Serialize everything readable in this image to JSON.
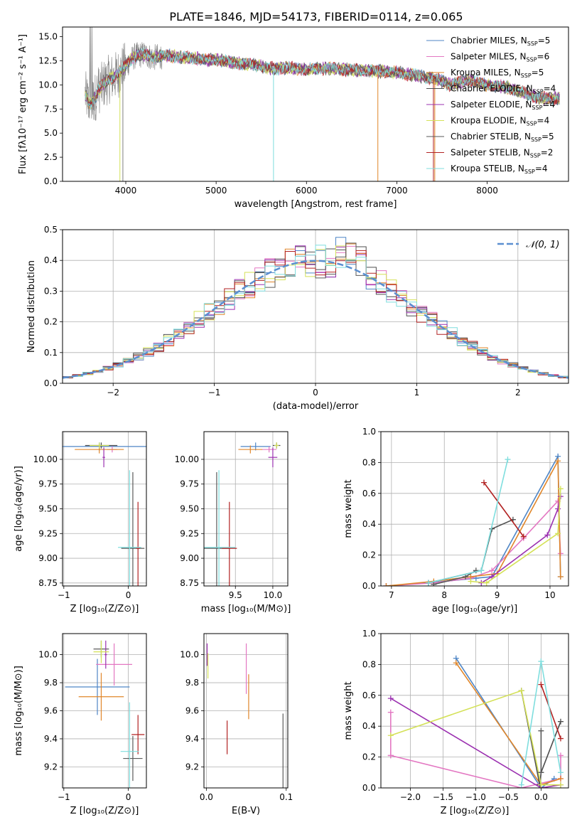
{
  "figure_title": "PLATE=1846, MJD=54173, FIBERID=0114, z=0.065",
  "colors": [
    "#4f86c6",
    "#e377c2",
    "#e0862a",
    "#4d4d4d",
    "#9b30b0",
    "#d4e157",
    "#5a5a5a",
    "#b22222",
    "#7fdede"
  ],
  "chart_data": [
    {
      "id": "spectrum",
      "type": "line",
      "xlabel": "wavelength [Angstrom, rest frame]",
      "ylabel": "Flux [fλ10⁻¹⁷ erg cm⁻² s⁻¹ A⁻¹]",
      "xlim": [
        3300,
        8900
      ],
      "ylim": [
        0,
        16
      ],
      "xticks": [
        "4000",
        "5000",
        "6000",
        "7000",
        "8000"
      ],
      "yticks": [
        "0.0",
        "2.5",
        "5.0",
        "7.5",
        "10.0",
        "12.5",
        "15.0"
      ],
      "legend": [
        {
          "name": "Chabrier MILES, N",
          "sub": "SSP",
          "tail": "=5",
          "color": "#4f86c6"
        },
        {
          "name": "Salpeter MILES, N",
          "sub": "SSP",
          "tail": "=6",
          "color": "#e377c2"
        },
        {
          "name": "Kroupa MILES, N",
          "sub": "SSP",
          "tail": "=5",
          "color": "#e0862a"
        },
        {
          "name": "Chabrier ELODIE, N",
          "sub": "SSP",
          "tail": "=4",
          "color": "#4d4d4d"
        },
        {
          "name": "Salpeter ELODIE, N",
          "sub": "SSP",
          "tail": "=4",
          "color": "#9b30b0"
        },
        {
          "name": "Kroupa ELODIE, N",
          "sub": "SSP",
          "tail": "=4",
          "color": "#d4e157"
        },
        {
          "name": "Chabrier STELIB, N",
          "sub": "SSP",
          "tail": "=5",
          "color": "#5a5a5a"
        },
        {
          "name": "Salpeter STELIB, N",
          "sub": "SSP",
          "tail": "=2",
          "color": "#b22222"
        },
        {
          "name": "Kroupa STELIB, N",
          "sub": "SSP",
          "tail": "=4",
          "color": "#7fdede"
        }
      ],
      "continuum": [
        [
          3550,
          9
        ],
        [
          3600,
          8
        ],
        [
          3650,
          8.5
        ],
        [
          3700,
          9.5
        ],
        [
          3800,
          10.5
        ],
        [
          3900,
          11
        ],
        [
          4000,
          12
        ],
        [
          4100,
          13
        ],
        [
          4200,
          13.2
        ],
        [
          4300,
          12.8
        ],
        [
          4400,
          13
        ],
        [
          4500,
          13
        ],
        [
          4700,
          12.8
        ],
        [
          4900,
          12.6
        ],
        [
          5000,
          12.6
        ],
        [
          5200,
          12.3
        ],
        [
          5400,
          12.1
        ],
        [
          5600,
          11.7
        ],
        [
          5800,
          11.8
        ],
        [
          6000,
          11.6
        ],
        [
          6200,
          11.7
        ],
        [
          6400,
          11.6
        ],
        [
          6600,
          11.5
        ],
        [
          6800,
          11.4
        ],
        [
          7000,
          11.3
        ],
        [
          7200,
          11
        ],
        [
          7400,
          10.7
        ],
        [
          7600,
          10
        ],
        [
          7800,
          10.5
        ],
        [
          8000,
          10
        ],
        [
          8200,
          9.8
        ],
        [
          8400,
          9.2
        ],
        [
          8600,
          8.6
        ],
        [
          8800,
          8.6
        ]
      ]
    },
    {
      "id": "residuals",
      "type": "histogram",
      "xlabel": "(data-model)/error",
      "ylabel": "Normed distribution",
      "xlim": [
        -2.5,
        2.5
      ],
      "ylim": [
        0,
        0.5
      ],
      "xticks": [
        "−2",
        "−1",
        "0",
        "1",
        "2"
      ],
      "yticks": [
        "0.0",
        "0.1",
        "0.2",
        "0.3",
        "0.4",
        "0.5"
      ],
      "legend_label": "𝒩(0, 1)",
      "bin_width": 0.1
    },
    {
      "id": "age_vs_Z",
      "type": "scatter",
      "xlabel": "Z [log₁₀(Z/Z⊙)]",
      "ylabel": "age  [log₁₀(age/yr)]",
      "xlim": [
        -1.02,
        0.28
      ],
      "ylim": [
        8.72,
        10.28
      ],
      "xticks": [
        "−1",
        "0"
      ],
      "yticks": [
        "8.75",
        "9.00",
        "9.25",
        "9.50",
        "9.75",
        "10.00"
      ],
      "points": [
        {
          "x": -0.45,
          "y": 10.13,
          "xerr": 0.95,
          "yerr": 0.04,
          "c": 0
        },
        {
          "x": -0.25,
          "y": 10.1,
          "xerr": 0.08,
          "yerr": 0.03,
          "c": 1
        },
        {
          "x": -0.45,
          "y": 10.1,
          "xerr": 0.38,
          "yerr": 0.04,
          "c": 2
        },
        {
          "x": -0.42,
          "y": 10.14,
          "xerr": 0.25,
          "yerr": 0.03,
          "c": 3
        },
        {
          "x": -0.38,
          "y": 10.02,
          "xerr": 0.02,
          "yerr": 0.1,
          "c": 4
        },
        {
          "x": -0.45,
          "y": 10.14,
          "xerr": 0.15,
          "yerr": 0.03,
          "c": 5
        },
        {
          "x": 0.07,
          "y": 9.1,
          "xerr": 0.18,
          "yerr": 0.77,
          "c": 6
        },
        {
          "x": 0.15,
          "y": 9.1,
          "xerr": 0.03,
          "yerr": 0.47,
          "c": 7
        },
        {
          "x": 0.02,
          "y": 9.11,
          "xerr": 0.18,
          "yerr": 0.78,
          "c": 8
        }
      ]
    },
    {
      "id": "age_vs_mass",
      "type": "scatter",
      "xlabel": "mass [log₁₀(M/M⊙)]",
      "ylabel": "",
      "xlim": [
        9.08,
        10.2
      ],
      "ylim": [
        8.72,
        10.28
      ],
      "xticks": [
        "9.5",
        "10.0"
      ],
      "yticks": [
        "8.75",
        "9.00",
        "9.25",
        "9.50",
        "9.75",
        "10.00"
      ],
      "points": [
        {
          "x": 9.77,
          "y": 10.13,
          "xerr": 0.2,
          "yerr": 0.04,
          "c": 0
        },
        {
          "x": 9.95,
          "y": 10.1,
          "xerr": 0.1,
          "yerr": 0.03,
          "c": 1
        },
        {
          "x": 9.7,
          "y": 10.1,
          "xerr": 0.16,
          "yerr": 0.04,
          "c": 2
        },
        {
          "x": 10.05,
          "y": 10.14,
          "xerr": 0.05,
          "yerr": 0.03,
          "c": 3
        },
        {
          "x": 10.0,
          "y": 10.02,
          "xerr": 0.06,
          "yerr": 0.1,
          "c": 4
        },
        {
          "x": 10.05,
          "y": 10.14,
          "xerr": 0.03,
          "yerr": 0.03,
          "c": 5
        },
        {
          "x": 9.25,
          "y": 9.1,
          "xerr": 0.18,
          "yerr": 0.77,
          "c": 6
        },
        {
          "x": 9.42,
          "y": 9.1,
          "xerr": 0.1,
          "yerr": 0.47,
          "c": 7
        },
        {
          "x": 9.28,
          "y": 9.11,
          "xerr": 0.22,
          "yerr": 0.78,
          "c": 8
        }
      ]
    },
    {
      "id": "weight_vs_age",
      "type": "line",
      "xlabel": "age  [log₁₀(age/yr)]",
      "ylabel": "mass weight",
      "xlim": [
        6.8,
        10.35
      ],
      "ylim": [
        0,
        1.0
      ],
      "xticks": [
        "7",
        "8",
        "9",
        "10"
      ],
      "yticks": [
        "0.0",
        "0.2",
        "0.4",
        "0.6",
        "0.8",
        "1.0"
      ],
      "series": [
        {
          "c": 0,
          "x": [
            6.9,
            7.7,
            8.6,
            8.9,
            10.15,
            10.2
          ],
          "y": [
            0.0,
            0.02,
            0.05,
            0.06,
            0.84,
            0.06
          ]
        },
        {
          "c": 1,
          "x": [
            6.9,
            7.8,
            8.5,
            8.9,
            9.5,
            10.15,
            10.2
          ],
          "y": [
            0.0,
            0.02,
            0.05,
            0.1,
            0.31,
            0.55,
            0.21
          ]
        },
        {
          "c": 2,
          "x": [
            6.9,
            7.8,
            8.5,
            9.0,
            10.15,
            10.2
          ],
          "y": [
            0.0,
            0.03,
            0.06,
            0.08,
            0.81,
            0.06
          ]
        },
        {
          "c": 3,
          "x": [
            7.7,
            8.7,
            8.9,
            9.3
          ],
          "y": [
            0.02,
            0.1,
            0.37,
            0.43
          ]
        },
        {
          "c": 4,
          "x": [
            8.7,
            8.9,
            9.95,
            10.15,
            10.2
          ],
          "y": [
            0.02,
            0.06,
            0.33,
            0.5,
            0.58
          ]
        },
        {
          "c": 5,
          "x": [
            8.5,
            8.8,
            10.15,
            10.2
          ],
          "y": [
            0.03,
            0.02,
            0.34,
            0.63
          ]
        },
        {
          "c": 6,
          "x": [
            7.8,
            8.4,
            8.6
          ],
          "y": [
            0.01,
            0.06,
            0.1
          ]
        },
        {
          "c": 7,
          "x": [
            8.75,
            9.5
          ],
          "y": [
            0.67,
            0.32
          ]
        },
        {
          "c": 8,
          "x": [
            7.7,
            8.7,
            9.2
          ],
          "y": [
            0.02,
            0.1,
            0.82
          ]
        }
      ]
    },
    {
      "id": "mass_vs_Z",
      "type": "scatter",
      "xlabel": "Z [log₁₀(Z/Z⊙)]",
      "ylabel": "mass [log₁₀(M/M⊙)]",
      "xlim": [
        -1.02,
        0.28
      ],
      "ylim": [
        9.05,
        10.15
      ],
      "xticks": [
        "−1",
        "0"
      ],
      "yticks": [
        "9.2",
        "9.4",
        "9.6",
        "9.8",
        "10.0"
      ],
      "points": [
        {
          "x": -0.48,
          "y": 9.77,
          "xerr": 0.5,
          "yerr": 0.2,
          "c": 0
        },
        {
          "x": -0.22,
          "y": 9.93,
          "xerr": 0.28,
          "yerr": 0.15,
          "c": 1
        },
        {
          "x": -0.42,
          "y": 9.7,
          "xerr": 0.35,
          "yerr": 0.17,
          "c": 2
        },
        {
          "x": -0.42,
          "y": 10.04,
          "xerr": 0.12,
          "yerr": 0.06,
          "c": 3
        },
        {
          "x": -0.35,
          "y": 10.0,
          "xerr": 0.02,
          "yerr": 0.1,
          "c": 4
        },
        {
          "x": -0.42,
          "y": 10.02,
          "xerr": 0.12,
          "yerr": 0.08,
          "c": 5
        },
        {
          "x": 0.07,
          "y": 9.26,
          "xerr": 0.15,
          "yerr": 0.16,
          "c": 6
        },
        {
          "x": 0.15,
          "y": 9.43,
          "xerr": 0.1,
          "yerr": 0.14,
          "c": 7
        },
        {
          "x": 0.02,
          "y": 9.31,
          "xerr": 0.14,
          "yerr": 0.35,
          "c": 8
        }
      ]
    },
    {
      "id": "mass_vs_ebv",
      "type": "scatter",
      "xlabel": "E(B-V)",
      "ylabel": "",
      "xlim": [
        -0.003,
        0.102
      ],
      "ylim": [
        9.05,
        10.15
      ],
      "xticks": [
        "0.0",
        "0.1"
      ],
      "yticks": [
        "9.2",
        "9.4",
        "9.6",
        "9.8",
        "10.0"
      ],
      "points": [
        {
          "x": 0.001,
          "y": 10.0,
          "xerr": 0,
          "yerr": 0.08,
          "c": 4
        },
        {
          "x": 0.002,
          "y": 9.92,
          "xerr": 0,
          "yerr": 0.09,
          "c": 5
        },
        {
          "x": 0.05,
          "y": 9.9,
          "xerr": 0,
          "yerr": 0.18,
          "c": 1
        },
        {
          "x": 0.053,
          "y": 9.7,
          "xerr": 0,
          "yerr": 0.16,
          "c": 2
        },
        {
          "x": 0.026,
          "y": 9.41,
          "xerr": 0,
          "yerr": 0.12,
          "c": 7
        },
        {
          "x": 0.096,
          "y": 9.26,
          "xerr": 0,
          "yerr": 0.32,
          "c": 6
        }
      ]
    },
    {
      "id": "weight_vs_Z",
      "type": "line",
      "xlabel": "Z [log₁₀(Z/Z⊙)]",
      "ylabel": "mass weight",
      "xlim": [
        -2.45,
        0.42
      ],
      "ylim": [
        0,
        1.0
      ],
      "xticks": [
        "−2.0",
        "−1.5",
        "−1.0",
        "−0.5",
        "0.0"
      ],
      "yticks": [
        "0.0",
        "0.2",
        "0.4",
        "0.6",
        "0.8",
        "1.0"
      ],
      "series": [
        {
          "c": 0,
          "x": [
            -1.3,
            0.0,
            0.2
          ],
          "y": [
            0.84,
            0.0,
            0.06
          ]
        },
        {
          "c": 1,
          "x": [
            -2.3,
            -2.3,
            -2.3,
            -0.3,
            0.3,
            0.3
          ],
          "y": [
            0.49,
            0.21,
            0.21,
            0.0,
            0.06,
            0.21
          ]
        },
        {
          "c": 2,
          "x": [
            -1.3,
            0.0,
            0.3
          ],
          "y": [
            0.81,
            0.02,
            0.06
          ]
        },
        {
          "c": 3,
          "x": [
            -0.3,
            -0.02,
            0.0,
            0.3
          ],
          "y": [
            0.63,
            0.02,
            0.1,
            0.43
          ]
        },
        {
          "c": 4,
          "x": [
            -2.3,
            0.0,
            0.3
          ],
          "y": [
            0.58,
            0.0,
            0.02
          ]
        },
        {
          "c": 5,
          "x": [
            -2.3,
            -0.3,
            0.0,
            0.3
          ],
          "y": [
            0.34,
            0.63,
            0.02,
            0.02
          ]
        },
        {
          "c": 6,
          "x": [
            0.0,
            0.0
          ],
          "y": [
            0.37,
            0.1
          ]
        },
        {
          "c": 7,
          "x": [
            0.0,
            0.3
          ],
          "y": [
            0.67,
            0.32
          ]
        },
        {
          "c": 8,
          "x": [
            -0.3,
            0.0,
            0.3
          ],
          "y": [
            0.02,
            0.82,
            0.1
          ]
        }
      ]
    }
  ]
}
